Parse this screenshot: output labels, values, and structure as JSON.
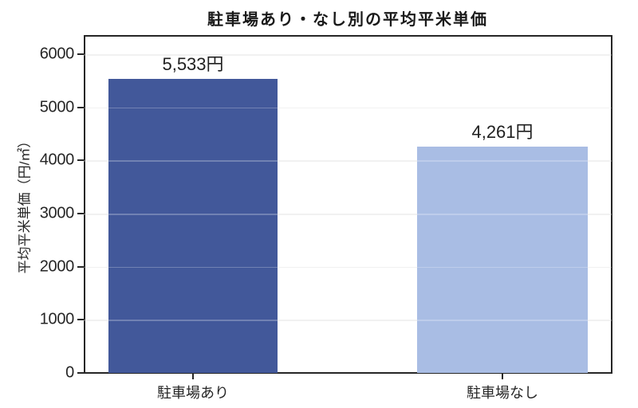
{
  "chart_data": {
    "type": "bar",
    "title": "駐車場あり・なし別の平均平米単価",
    "categories": [
      "駐車場あり",
      "駐車場なし"
    ],
    "values": [
      5533,
      4261
    ],
    "bar_value_labels": [
      "5,533円",
      "4,261円"
    ],
    "bar_colors": [
      "#42589A",
      "#A9BDE4"
    ],
    "ylabel": "平均平米単価（円/㎡）",
    "xlabel": "",
    "ylim": [
      0,
      6360
    ],
    "yticks": [
      "0",
      "1000",
      "2000",
      "3000",
      "4000",
      "5000",
      "6000"
    ],
    "grid": "horizontal-light",
    "legend": "none"
  }
}
